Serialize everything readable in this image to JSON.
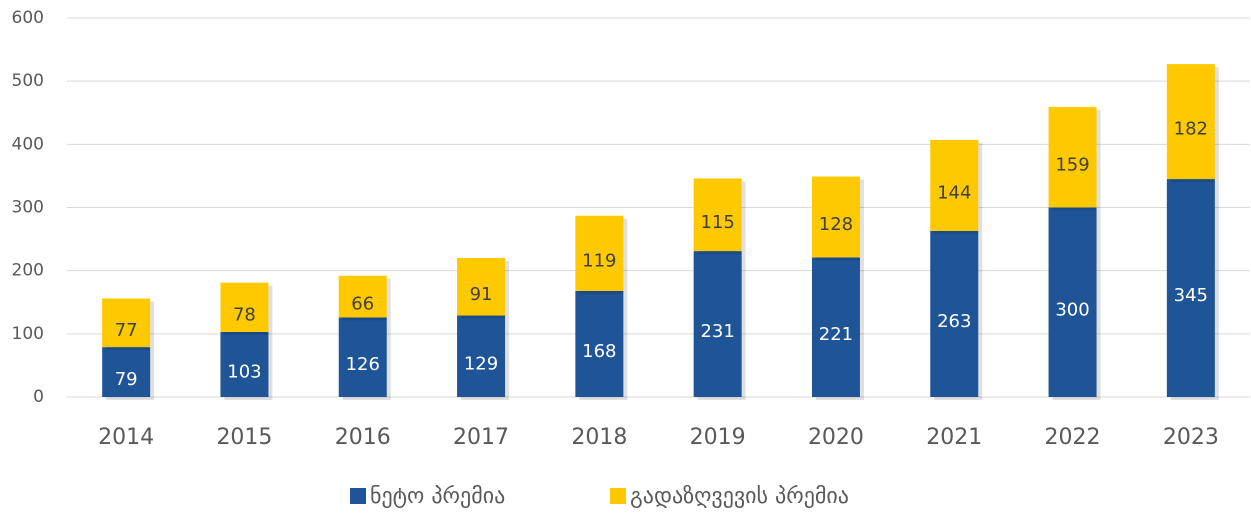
{
  "chart_data": {
    "type": "stacked_bar",
    "categories": [
      "2014",
      "2015",
      "2016",
      "2017",
      "2018",
      "2019",
      "2020",
      "2021",
      "2022",
      "2023"
    ],
    "series": [
      {
        "name": "ნეტო პრემია",
        "color": "#1f5597",
        "values": [
          79,
          103,
          126,
          129,
          168,
          231,
          221,
          263,
          300,
          345
        ]
      },
      {
        "name": "გადაზღვევის პრემია",
        "color": "#ffc900",
        "values": [
          77,
          78,
          66,
          91,
          119,
          115,
          128,
          144,
          159,
          182
        ]
      }
    ],
    "ylim": [
      0,
      600
    ],
    "yticks": [
      0,
      100,
      200,
      300,
      400,
      500,
      600
    ],
    "grid": true,
    "legend": "bottom"
  }
}
